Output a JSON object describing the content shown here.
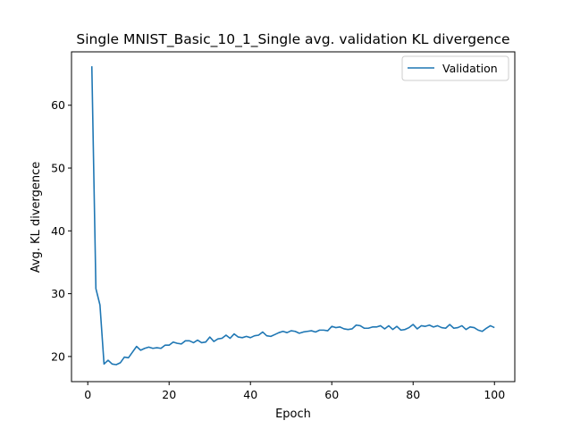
{
  "chart_data": {
    "type": "line",
    "title": "Single MNIST_Basic_10_1_Single avg. validation KL divergence",
    "xlabel": "Epoch",
    "ylabel": "Avg. KL divergence",
    "xlim": [
      -4,
      105
    ],
    "ylim": [
      16.0,
      68.5
    ],
    "xticks": [
      0,
      20,
      40,
      60,
      80,
      100
    ],
    "yticks": [
      20,
      30,
      40,
      50,
      60
    ],
    "grid": false,
    "legend_position": "top-right",
    "series": [
      {
        "name": "Validation",
        "color": "#1f77b4",
        "x": [
          1,
          2,
          3,
          4,
          5,
          6,
          7,
          8,
          9,
          10,
          11,
          12,
          13,
          14,
          15,
          16,
          17,
          18,
          19,
          20,
          21,
          22,
          23,
          24,
          25,
          26,
          27,
          28,
          29,
          30,
          31,
          32,
          33,
          34,
          35,
          36,
          37,
          38,
          39,
          40,
          41,
          42,
          43,
          44,
          45,
          46,
          47,
          48,
          49,
          50,
          51,
          52,
          53,
          54,
          55,
          56,
          57,
          58,
          59,
          60,
          61,
          62,
          63,
          64,
          65,
          66,
          67,
          68,
          69,
          70,
          71,
          72,
          73,
          74,
          75,
          76,
          77,
          78,
          79,
          80,
          81,
          82,
          83,
          84,
          85,
          86,
          87,
          88,
          89,
          90,
          91,
          92,
          93,
          94,
          95,
          96,
          97,
          98,
          99,
          100
        ],
        "values": [
          66.2,
          30.8,
          28.2,
          18.8,
          19.4,
          18.8,
          18.7,
          19.0,
          19.9,
          19.8,
          20.7,
          21.6,
          21.0,
          21.3,
          21.5,
          21.3,
          21.4,
          21.3,
          21.8,
          21.8,
          22.3,
          22.1,
          22.0,
          22.5,
          22.5,
          22.2,
          22.6,
          22.2,
          22.3,
          23.1,
          22.4,
          22.8,
          22.9,
          23.4,
          22.9,
          23.6,
          23.1,
          23.0,
          23.2,
          23.0,
          23.3,
          23.4,
          23.9,
          23.3,
          23.2,
          23.5,
          23.8,
          24.0,
          23.8,
          24.1,
          24.0,
          23.7,
          23.9,
          24.0,
          24.1,
          23.9,
          24.2,
          24.2,
          24.1,
          24.8,
          24.6,
          24.7,
          24.4,
          24.3,
          24.4,
          25.0,
          24.9,
          24.5,
          24.5,
          24.7,
          24.7,
          24.9,
          24.4,
          24.9,
          24.3,
          24.8,
          24.2,
          24.3,
          24.6,
          25.1,
          24.4,
          24.9,
          24.8,
          25.0,
          24.7,
          24.9,
          24.6,
          24.5,
          25.1,
          24.5,
          24.6,
          24.9,
          24.3,
          24.7,
          24.6,
          24.2,
          24.0,
          24.5,
          24.9,
          24.6
        ]
      }
    ]
  }
}
